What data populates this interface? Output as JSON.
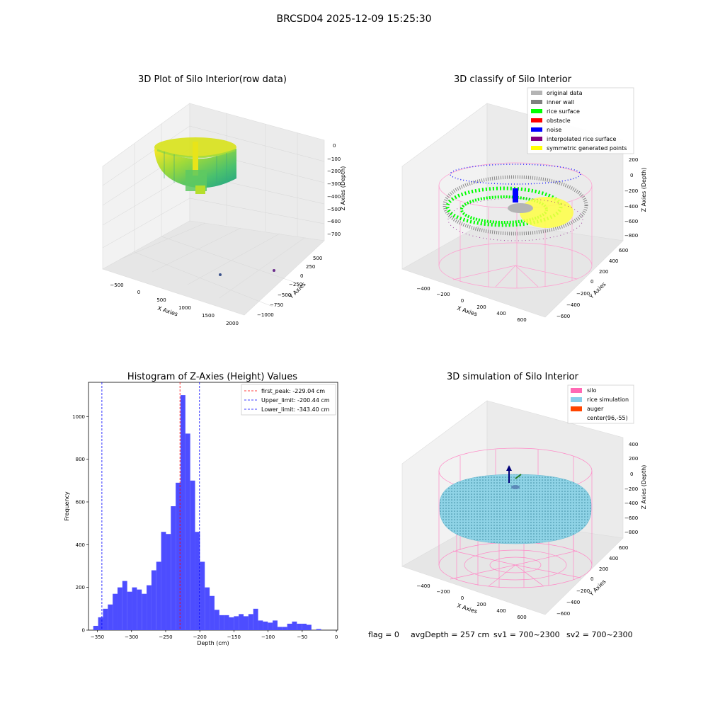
{
  "figure_title": "BRCSD04 2025-12-09 15:25:30",
  "footer": {
    "flag": "flag = 0",
    "avg_depth": "avgDepth = 257 cm",
    "sv1": "sv1 = 700~2300",
    "sv2": "sv2 = 700~2300"
  },
  "chart_data": [
    {
      "type": "scatter",
      "title": "3D Plot of Silo Interior(row data)",
      "xlabel": "X Axies",
      "ylabel": "Y Axies",
      "zlabel": "Z Axies (Depth)",
      "x_ticks": [
        "−500",
        "0",
        "500",
        "1000",
        "1500",
        "2000"
      ],
      "y_ticks": [
        "−1000",
        "−750",
        "−500",
        "−250",
        "0",
        "250",
        "500"
      ],
      "z_ticks": [
        "0",
        "−100",
        "−200",
        "−300",
        "−400",
        "−500",
        "−600",
        "−700"
      ],
      "series": [
        {
          "values": "point cloud (viridis colored by depth)"
        }
      ],
      "outliers": [
        {
          "x": 1250,
          "y": -700
        },
        {
          "x": 1750,
          "y": -500
        }
      ]
    },
    {
      "type": "scatter",
      "title": "3D classify of Silo Interior",
      "xlabel": "X Axies",
      "ylabel": "Y Axies",
      "zlabel": "Z Axies (Depth)",
      "x_ticks": [
        "−400",
        "−200",
        "0",
        "200",
        "400",
        "600"
      ],
      "y_ticks": [
        "−600",
        "−400",
        "−200",
        "0",
        "200",
        "400",
        "600"
      ],
      "z_ticks": [
        "200",
        "0",
        "−200",
        "−400",
        "−600",
        "−800"
      ],
      "legend": [
        {
          "label": "original data",
          "color": "#b4b4b4"
        },
        {
          "label": "inner wall",
          "color": "#808080"
        },
        {
          "label": "rice surface",
          "color": "#00ff00"
        },
        {
          "label": "obstacle",
          "color": "#ff0000"
        },
        {
          "label": "noise",
          "color": "#0000ff"
        },
        {
          "label": "interpolated rice surface",
          "color": "#800080"
        },
        {
          "label": "symmetric generated points",
          "color": "#ffff00"
        }
      ],
      "legend_position": "top-right"
    },
    {
      "type": "bar",
      "title": "Histogram of Z-Axies (Height) Values",
      "xlabel": "Depth (cm)",
      "ylabel": "Frequency",
      "xlim": [
        -363,
        2
      ],
      "ylim": [
        0,
        1160
      ],
      "x_ticks": [
        -350,
        -300,
        -250,
        -200,
        -150,
        -100,
        -50,
        0
      ],
      "x_tick_labels": [
        "−350",
        "−300",
        "−250",
        "−200",
        "−150",
        "−100",
        "−50",
        "0"
      ],
      "y_ticks": [
        0,
        200,
        400,
        600,
        800,
        1000
      ],
      "bin_edges_start": -356,
      "bin_width": 7.1,
      "values": [
        20,
        60,
        100,
        120,
        170,
        200,
        230,
        180,
        200,
        190,
        170,
        210,
        280,
        320,
        460,
        450,
        580,
        690,
        1100,
        920,
        700,
        460,
        320,
        200,
        160,
        95,
        70,
        70,
        60,
        65,
        75,
        65,
        75,
        100,
        45,
        40,
        35,
        45,
        15,
        15,
        30,
        40,
        30,
        30,
        25,
        0,
        5
      ],
      "bar_color": "#4d4dff",
      "vlines": [
        {
          "label": "first_peak: -229.04 cm",
          "x": -229.04,
          "color": "#ff0000"
        },
        {
          "label": "Upper_limit: -200.44 cm",
          "x": -200.44,
          "color": "#0000ff"
        },
        {
          "label": "Lower_limit: -343.40 cm",
          "x": -343.4,
          "color": "#0000ff"
        }
      ],
      "legend_position": "top-right"
    },
    {
      "type": "scatter",
      "title": "3D simulation of Silo Interior",
      "xlabel": "X Axies",
      "ylabel": "Y Axies",
      "zlabel": "Z Axies (Depth)",
      "x_ticks": [
        "−400",
        "−200",
        "0",
        "200",
        "400",
        "600"
      ],
      "y_ticks": [
        "−600",
        "−400",
        "−200",
        "0",
        "200",
        "400",
        "600"
      ],
      "z_ticks": [
        "400",
        "200",
        "0",
        "−200",
        "−400",
        "−600",
        "−800"
      ],
      "legend": [
        {
          "label": "silo",
          "color": "#ff69b4"
        },
        {
          "label": "rice simulation",
          "color": "#87ceeb"
        },
        {
          "label": "auger",
          "color": "#ff4500"
        },
        {
          "label": "center(96,-55)",
          "color": ""
        }
      ],
      "legend_position": "top-right"
    }
  ]
}
